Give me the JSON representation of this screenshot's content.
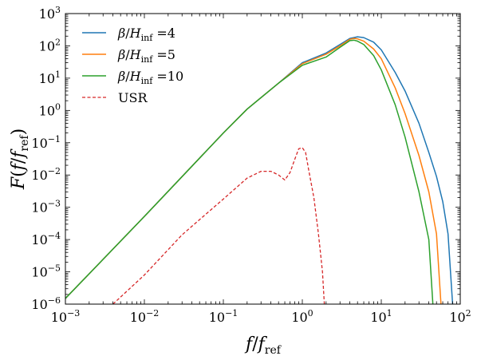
{
  "chart_data": {
    "type": "line",
    "xlabel": {
      "base": "f",
      "separator": "/",
      "denominator": "f",
      "subscript": "ref"
    },
    "ylabel": {
      "fn": "F",
      "open": "(",
      "base": "f",
      "separator": "/",
      "denominator": "f",
      "subscript": "ref",
      "close": ")"
    },
    "xscale": "log",
    "yscale": "log",
    "xlim": [
      0.001,
      100
    ],
    "ylim": [
      1e-06,
      1000
    ],
    "x_ticks": [
      {
        "base": "10",
        "exp": "−3",
        "value": 0.001
      },
      {
        "base": "10",
        "exp": "−2",
        "value": 0.01
      },
      {
        "base": "10",
        "exp": "−1",
        "value": 0.1
      },
      {
        "base": "10",
        "exp": "0",
        "value": 1
      },
      {
        "base": "10",
        "exp": "1",
        "value": 10
      },
      {
        "base": "10",
        "exp": "2",
        "value": 100
      }
    ],
    "y_ticks": [
      {
        "base": "10",
        "exp": "−6",
        "value": 1e-06
      },
      {
        "base": "10",
        "exp": "−5",
        "value": 1e-05
      },
      {
        "base": "10",
        "exp": "−4",
        "value": 0.0001
      },
      {
        "base": "10",
        "exp": "−3",
        "value": 0.001
      },
      {
        "base": "10",
        "exp": "−2",
        "value": 0.01
      },
      {
        "base": "10",
        "exp": "−1",
        "value": 0.1
      },
      {
        "base": "10",
        "exp": "0",
        "value": 1
      },
      {
        "base": "10",
        "exp": "1",
        "value": 10
      },
      {
        "base": "10",
        "exp": "2",
        "value": 100
      },
      {
        "base": "10",
        "exp": "3",
        "value": 1000
      }
    ],
    "grid": false,
    "legend_position": "top-left",
    "series": [
      {
        "name": "β/H_inf =4",
        "legend": {
          "beta": "β",
          "slash": "/",
          "H": "H",
          "sub": "inf",
          "eq": " =4"
        },
        "color": "#1f77b4",
        "style": "solid",
        "points": [
          [
            0.001,
            1.5e-06
          ],
          [
            0.01,
            0.00052
          ],
          [
            0.1,
            0.2
          ],
          [
            0.2,
            1.1
          ],
          [
            0.5,
            7
          ],
          [
            1,
            30
          ],
          [
            2,
            60
          ],
          [
            3,
            110
          ],
          [
            4,
            170
          ],
          [
            5,
            190
          ],
          [
            6,
            180
          ],
          [
            8,
            130
          ],
          [
            10,
            75
          ],
          [
            15,
            15
          ],
          [
            20,
            4
          ],
          [
            30,
            0.4
          ],
          [
            40,
            0.05
          ],
          [
            50,
            0.009
          ],
          [
            60,
            0.0015
          ],
          [
            70,
            0.00015
          ],
          [
            80,
            1e-06
          ]
        ]
      },
      {
        "name": "β/H_inf =5",
        "legend": {
          "beta": "β",
          "slash": "/",
          "H": "H",
          "sub": "inf",
          "eq": " =5"
        },
        "color": "#ff7f0e",
        "style": "solid",
        "points": [
          [
            0.001,
            1.5e-06
          ],
          [
            0.01,
            0.00052
          ],
          [
            0.1,
            0.2
          ],
          [
            0.2,
            1.1
          ],
          [
            0.5,
            7
          ],
          [
            1,
            28
          ],
          [
            2,
            55
          ],
          [
            3,
            100
          ],
          [
            4,
            160
          ],
          [
            4.5,
            170
          ],
          [
            5,
            165
          ],
          [
            6,
            140
          ],
          [
            8,
            80
          ],
          [
            10,
            40
          ],
          [
            15,
            5
          ],
          [
            20,
            0.8
          ],
          [
            30,
            0.04
          ],
          [
            40,
            0.003
          ],
          [
            50,
            0.00015
          ],
          [
            57,
            1e-06
          ]
        ]
      },
      {
        "name": "β/H_inf =10",
        "legend": {
          "beta": "β",
          "slash": "/",
          "H": "H",
          "sub": "inf",
          "eq": " =10"
        },
        "color": "#2ca02c",
        "style": "solid",
        "points": [
          [
            0.001,
            1.5e-06
          ],
          [
            0.01,
            0.00052
          ],
          [
            0.1,
            0.2
          ],
          [
            0.2,
            1.1
          ],
          [
            0.5,
            7
          ],
          [
            1,
            25
          ],
          [
            2,
            45
          ],
          [
            3,
            90
          ],
          [
            4,
            145
          ],
          [
            4.5,
            150
          ],
          [
            5,
            140
          ],
          [
            6,
            110
          ],
          [
            8,
            50
          ],
          [
            10,
            18
          ],
          [
            15,
            1.5
          ],
          [
            20,
            0.15
          ],
          [
            30,
            0.003
          ],
          [
            40,
            0.0001
          ],
          [
            45,
            1e-06
          ]
        ]
      },
      {
        "name": "USR",
        "legend": {
          "text": "USR"
        },
        "color": "#d62728",
        "style": "dashed",
        "points": [
          [
            0.004,
            1e-06
          ],
          [
            0.01,
            8e-06
          ],
          [
            0.03,
            0.00014
          ],
          [
            0.1,
            0.0018
          ],
          [
            0.2,
            0.008
          ],
          [
            0.3,
            0.013
          ],
          [
            0.4,
            0.013
          ],
          [
            0.5,
            0.01
          ],
          [
            0.6,
            0.007
          ],
          [
            0.7,
            0.012
          ],
          [
            0.8,
            0.03
          ],
          [
            0.9,
            0.065
          ],
          [
            1.0,
            0.07
          ],
          [
            1.1,
            0.05
          ],
          [
            1.2,
            0.015
          ],
          [
            1.4,
            0.002
          ],
          [
            1.6,
            0.00015
          ],
          [
            1.8,
            1e-05
          ],
          [
            1.9,
            1e-06
          ]
        ]
      }
    ]
  }
}
